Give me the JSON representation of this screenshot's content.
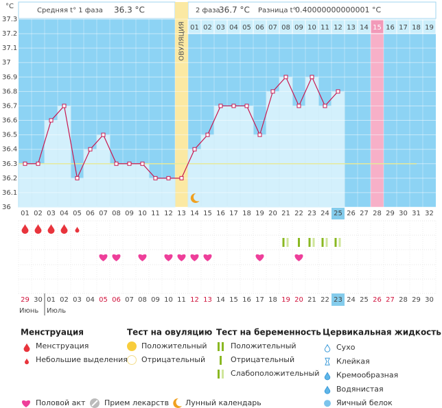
{
  "header": {
    "unit": "°C",
    "phase1_label": "Средняя t° 1 фаза",
    "phase1_value": "36.3 °C",
    "phase2_label": "2 фаза",
    "phase2_value": "36.7 °C",
    "difference_label": "Разница t°",
    "difference_value": "0.40000000000001 °C"
  },
  "chart_data": {
    "type": "line",
    "ylim": [
      36,
      37.3
    ],
    "yticks": [
      36,
      36.1,
      36.2,
      36.3,
      36.4,
      36.5,
      36.6,
      36.7,
      36.8,
      36.9,
      37,
      37.1,
      37.2,
      37.3
    ],
    "grid": true,
    "color": "#c8174f",
    "cover_line": 36.3,
    "days": [
      "01",
      "02",
      "03",
      "04",
      "05",
      "06",
      "07",
      "08",
      "09",
      "10",
      "11",
      "12",
      "13",
      "14",
      "15",
      "16",
      "17",
      "18",
      "19",
      "20",
      "21",
      "22",
      "23",
      "24",
      "25",
      "26",
      "27",
      "28",
      "29",
      "30",
      "31",
      "32"
    ],
    "values": [
      36.3,
      36.3,
      36.6,
      36.7,
      36.2,
      36.4,
      36.5,
      36.3,
      36.3,
      36.3,
      36.2,
      36.2,
      36.2,
      36.4,
      36.5,
      36.7,
      36.7,
      36.7,
      36.5,
      36.8,
      36.9,
      36.7,
      36.9,
      36.7,
      36.8,
      null,
      null,
      null,
      null,
      null,
      null,
      null
    ],
    "ovulation_day": 13,
    "ovulation_label": "ОВУЛЯЦИЯ",
    "phase2_days": [
      "01",
      "02",
      "03",
      "04",
      "05",
      "06",
      "07",
      "08",
      "09",
      "10",
      "11",
      "12",
      "13",
      "14",
      "15",
      "16",
      "17",
      "18",
      "19"
    ],
    "expected_period_day": 28,
    "today_day": 25,
    "lunar_days": [
      14
    ],
    "menstruation_days": [
      1,
      2,
      3,
      4
    ],
    "spotting_days": [
      5
    ],
    "pregnancy_tests": {
      "negative": [
        22
      ],
      "weak_positive": [
        21,
        23,
        24,
        25
      ]
    },
    "intercourse_days": [
      7,
      8,
      10,
      12,
      13,
      14,
      15,
      19,
      22
    ],
    "dates": [
      "29",
      "30",
      "01",
      "02",
      "03",
      "04",
      "05",
      "06",
      "07",
      "08",
      "09",
      "10",
      "11",
      "12",
      "13",
      "14",
      "15",
      "16",
      "17",
      "18",
      "19",
      "20",
      "21",
      "22",
      "23",
      "24",
      "25",
      "26",
      "27",
      "28",
      "29",
      "30"
    ],
    "weekend_days": [
      1,
      7,
      8,
      14,
      15,
      21,
      22,
      28,
      29
    ],
    "months": [
      "Июнь",
      "Июль"
    ]
  },
  "legend": {
    "menstruation": {
      "title": "Менструация",
      "items": [
        "Менструация",
        "Небольшие выделения"
      ]
    },
    "ovulation_test": {
      "title": "Тест на овуляцию",
      "items": [
        "Положительный",
        "Отрицательный"
      ]
    },
    "pregnancy_test": {
      "title": "Тест на беременность",
      "items": [
        "Положительный",
        "Отрицательный",
        "Слабоположительный"
      ]
    },
    "cervical_fluid": {
      "title": "Цервикальная жидкость",
      "items": [
        "Сухо",
        "Клейкая",
        "Кремообразная",
        "Водянистая",
        "Яичный белок"
      ]
    },
    "other": [
      "Половой акт",
      "Прием лекарств",
      "Лунный календарь"
    ]
  }
}
